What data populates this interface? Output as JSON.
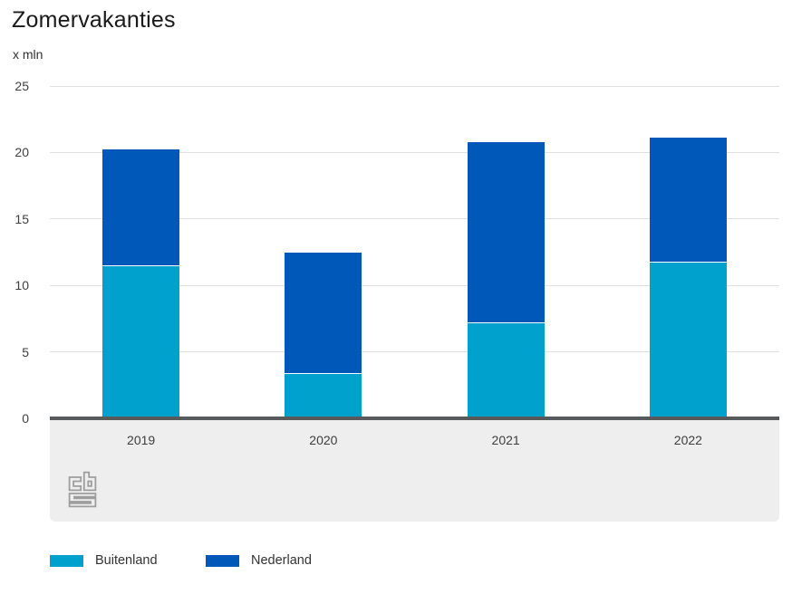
{
  "chart_data": {
    "type": "bar",
    "stacked": true,
    "title": "Zomervakanties",
    "unit_label": "x mln",
    "categories": [
      "2019",
      "2020",
      "2021",
      "2022"
    ],
    "series": [
      {
        "name": "Buitenland",
        "color": "#00a1cd",
        "values": [
          11.5,
          3.4,
          7.2,
          11.8
        ]
      },
      {
        "name": "Nederland",
        "color": "#0058b8",
        "values": [
          8.7,
          9.1,
          13.6,
          9.3
        ]
      }
    ],
    "totals": [
      20.2,
      12.5,
      20.8,
      21.1
    ],
    "ylim": [
      0,
      25
    ],
    "yticks": [
      0,
      5,
      10,
      15,
      20,
      25
    ],
    "grid": true,
    "legend_position": "bottom",
    "source_logo": "CBS"
  },
  "colors": {
    "buitenland": "#00a1cd",
    "nederland": "#0058b8",
    "grid": "#e0e0e0",
    "axis": "#58595b",
    "band": "#eeeeee",
    "tick_text": "#404040",
    "title_text": "#1a1a1a",
    "logo": "#9d9d9d"
  }
}
